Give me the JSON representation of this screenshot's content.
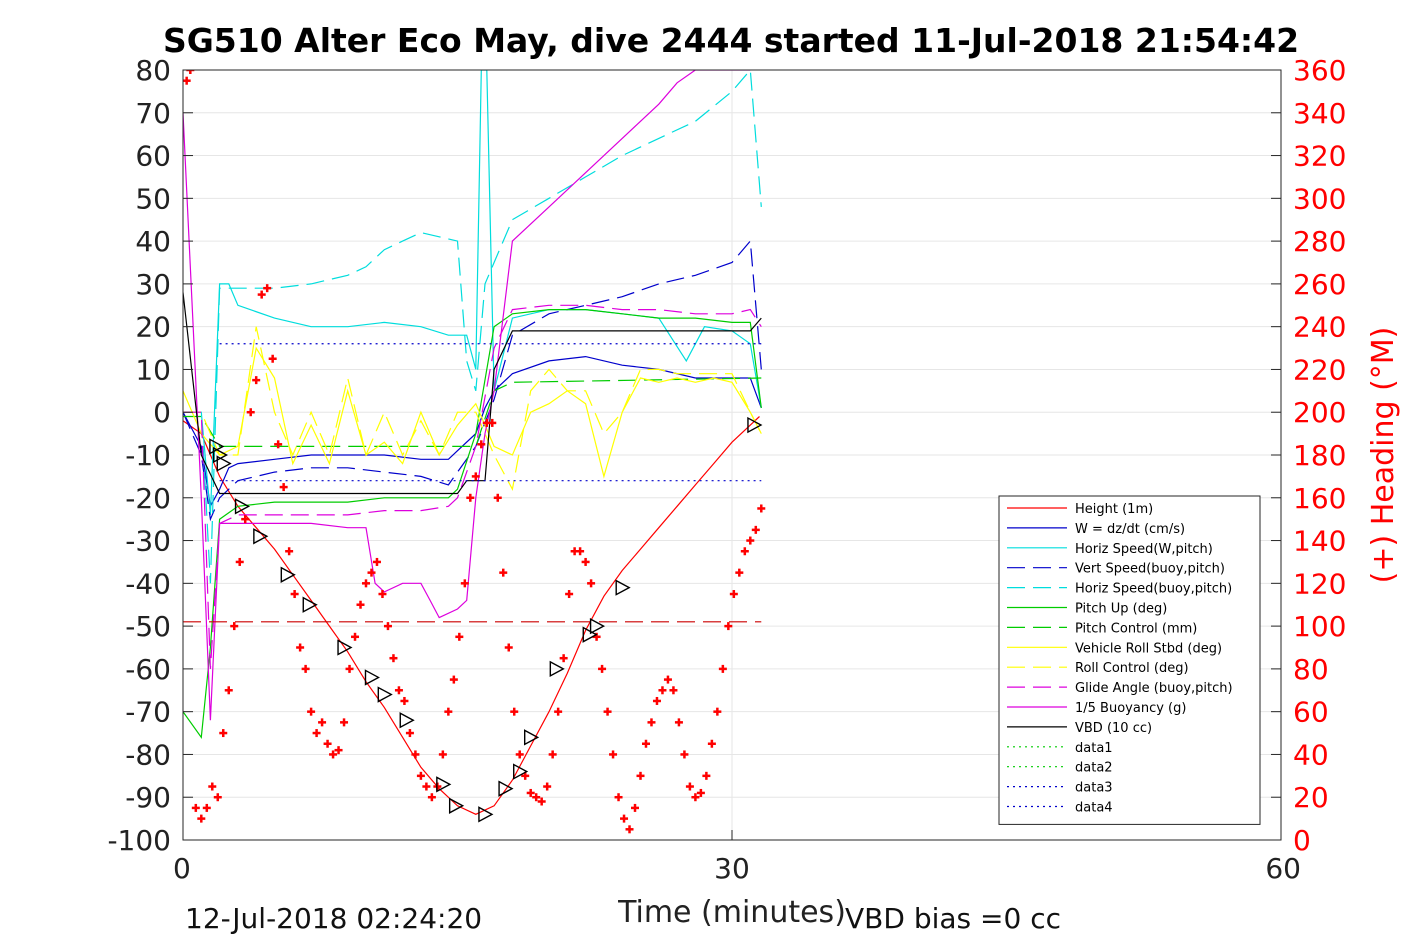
{
  "chart_data": {
    "type": "line",
    "title": "SG510 Alter Eco May, dive 2444 started 11-Jul-2018 21:54:42",
    "xlabel": "Time (minutes)",
    "ylabel": "",
    "y2label": "(+) Heading (°M)",
    "xlim": [
      0,
      60
    ],
    "ylim": [
      -100,
      80
    ],
    "y2lim": [
      0,
      360
    ],
    "x_ticks": [
      "0",
      "30",
      "60"
    ],
    "y_ticks": [
      "80",
      "70",
      "60",
      "50",
      "40",
      "30",
      "20",
      "10",
      "0",
      "-10",
      "-20",
      "-30",
      "-40",
      "-50",
      "-60",
      "-70",
      "-80",
      "-90",
      "-100"
    ],
    "y2_ticks": [
      "360",
      "340",
      "320",
      "300",
      "280",
      "260",
      "240",
      "220",
      "200",
      "180",
      "160",
      "140",
      "120",
      "100",
      "80",
      "60",
      "40",
      "20",
      "0"
    ],
    "grid": true,
    "legend_position": "lower-right",
    "footer_left": "12-Jul-2018 02:24:20",
    "footer_right": "VBD bias =0 cc",
    "series": [
      {
        "name": "Height (1m)",
        "color": "#ff0000",
        "style": "solid",
        "x": [
          0,
          1,
          2,
          3,
          4,
          5,
          6,
          7,
          8,
          9,
          10,
          11,
          12,
          13,
          14,
          15,
          16,
          17,
          18,
          19,
          20,
          21,
          22,
          23,
          24,
          25,
          26,
          27,
          28,
          29,
          30,
          31,
          31.5
        ],
        "y": [
          -2,
          -5,
          -15,
          -22,
          -27,
          -32,
          -38,
          -44,
          -50,
          -56,
          -63,
          -69,
          -76,
          -83,
          -88,
          -92,
          -94,
          -92,
          -86,
          -78,
          -70,
          -61,
          -51,
          -43,
          -37,
          -32,
          -27,
          -22,
          -17,
          -12,
          -7,
          -3,
          -1
        ]
      },
      {
        "name": "W = dz/dt (cm/s)",
        "color": "#0000cc",
        "style": "solid",
        "x": [
          0,
          1,
          1.5,
          2,
          2.5,
          3,
          5,
          7,
          9,
          11,
          13,
          14.5,
          15,
          16,
          16.5,
          17,
          18,
          20,
          22,
          24,
          26,
          28,
          30,
          31,
          31.6
        ],
        "y": [
          0,
          -8,
          -22,
          -18,
          -13,
          -12,
          -11,
          -10,
          -10,
          -10,
          -11,
          -11,
          -9,
          -5,
          1,
          5,
          9,
          12,
          13,
          11,
          10,
          8,
          8,
          8,
          1
        ]
      },
      {
        "name": "Horiz Speed(W,pitch)",
        "color": "#00dddd",
        "style": "solid",
        "x": [
          0,
          1,
          1.5,
          2,
          2.5,
          3,
          5,
          7,
          9,
          11,
          13,
          14.5,
          15.5,
          16,
          16.3,
          16.6,
          17,
          18,
          20,
          22,
          24,
          26,
          27.5,
          28.5,
          30,
          31,
          31.6
        ],
        "y": [
          0,
          0,
          -24,
          30,
          30,
          25,
          22,
          20,
          20,
          21,
          20,
          18,
          18,
          10,
          80,
          80,
          5,
          22,
          24,
          24,
          23,
          22,
          12,
          20,
          19,
          16,
          1
        ]
      },
      {
        "name": "Vert Speed(buoy,pitch)",
        "color": "#0000cc",
        "style": "dashed",
        "x": [
          0,
          1,
          1.5,
          2,
          3,
          5,
          7,
          9,
          11,
          13,
          14.5,
          15,
          16,
          17,
          18,
          20,
          22,
          24,
          26,
          28,
          30,
          31,
          31.6
        ],
        "y": [
          0,
          -10,
          -25,
          -20,
          -16,
          -14,
          -13,
          -13,
          -14,
          -15,
          -17,
          -14,
          -8,
          3,
          18,
          23,
          25,
          27,
          30,
          32,
          35,
          40,
          10
        ]
      },
      {
        "name": "Horiz Speed(buoy,pitch)",
        "color": "#00dddd",
        "style": "dashed",
        "x": [
          0,
          1,
          1.5,
          2,
          3,
          5,
          7,
          9,
          10,
          11,
          12,
          13,
          14,
          15,
          15.5,
          16,
          16.5,
          17,
          18,
          20,
          22,
          24,
          26,
          28,
          30,
          31,
          31.6
        ],
        "y": [
          0,
          0,
          -40,
          29,
          29,
          29,
          30,
          32,
          34,
          38,
          40,
          42,
          41,
          40,
          12,
          5,
          30,
          35,
          45,
          50,
          55,
          60,
          64,
          68,
          75,
          80,
          48
        ]
      },
      {
        "name": "Pitch Up (deg)",
        "color": "#00cc00",
        "style": "solid",
        "x": [
          0,
          1,
          1.5,
          2,
          3,
          5,
          7,
          9,
          11,
          13,
          14.5,
          15,
          16,
          17,
          18,
          20,
          22,
          24,
          26,
          28,
          30,
          31,
          31.6
        ],
        "y": [
          -70,
          -76,
          -55,
          -25,
          -22,
          -21,
          -21,
          -21,
          -20,
          -20,
          -20,
          -18,
          -5,
          20,
          23,
          24,
          24,
          23,
          22,
          22,
          21,
          21,
          1
        ]
      },
      {
        "name": "Pitch Control (mm)",
        "color": "#00cc00",
        "style": "dashed",
        "x": [
          0,
          1,
          2,
          3,
          15,
          16,
          17,
          18,
          31.6
        ],
        "y": [
          -1,
          -1,
          -8,
          -8,
          -8,
          -8,
          5,
          7,
          8
        ]
      },
      {
        "name": "Vehicle Roll Stbd (deg)",
        "color": "#ffff00",
        "style": "solid",
        "x": [
          0,
          1,
          2,
          3,
          4,
          5,
          6,
          7,
          8,
          9,
          10,
          11,
          12,
          13,
          14,
          15,
          16,
          17,
          18,
          19,
          20,
          21,
          22,
          23,
          24,
          25,
          26,
          27,
          28,
          29,
          30,
          31,
          31.6
        ],
        "y": [
          5,
          -5,
          -10,
          -8,
          15,
          8,
          -12,
          -3,
          -12,
          5,
          -10,
          -7,
          -12,
          0,
          -10,
          -3,
          2,
          -8,
          -10,
          0,
          2,
          5,
          2,
          -15,
          0,
          8,
          7,
          8,
          7,
          8,
          7,
          0,
          -5
        ]
      },
      {
        "name": "Roll Control (deg)",
        "color": "#ffff00",
        "style": "dashed",
        "x": [
          0,
          1,
          2,
          3,
          4,
          5,
          6,
          7,
          8,
          9,
          10,
          11,
          12,
          13,
          14,
          15,
          16,
          17,
          18,
          19,
          20,
          21,
          22,
          23,
          24,
          25,
          26,
          27,
          28,
          29,
          30,
          31,
          31.6
        ],
        "y": [
          0,
          0,
          -10,
          -10,
          20,
          0,
          -10,
          0,
          -10,
          8,
          -10,
          0,
          -10,
          -2,
          -10,
          0,
          0,
          -10,
          -18,
          5,
          10,
          5,
          5,
          -5,
          0,
          10,
          10,
          9,
          9,
          9,
          9,
          0,
          -5
        ]
      },
      {
        "name": "Glide Angle (buoy,pitch)",
        "color": "#dd00dd",
        "style": "dashed",
        "x": [
          0,
          1,
          1.5,
          2,
          3,
          5,
          7,
          9,
          11,
          13,
          14.5,
          15,
          16,
          17,
          18,
          20,
          22,
          24,
          26,
          28,
          30,
          31,
          31.6
        ],
        "y": [
          0,
          0,
          -60,
          -26,
          -24,
          -24,
          -24,
          -24,
          -23,
          -23,
          -22,
          -20,
          -8,
          15,
          24,
          25,
          25,
          24,
          24,
          23,
          23,
          24,
          20
        ]
      },
      {
        "name": "1/5 Buoyancy (g)",
        "color": "#dd00dd",
        "style": "solid",
        "x": [
          0,
          1,
          1.5,
          2,
          3,
          5,
          7,
          9,
          10,
          10.5,
          11,
          12,
          13,
          13.5,
          14,
          15,
          15.5,
          16,
          16.5,
          17,
          18,
          20,
          22,
          24,
          26,
          27,
          28,
          30,
          31
        ],
        "y": [
          70,
          -20,
          -72,
          -26,
          -26,
          -26,
          -26,
          -27,
          -27,
          -40,
          -42,
          -40,
          -40,
          -44,
          -48,
          -46,
          -44,
          -20,
          -5,
          5,
          40,
          48,
          56,
          64,
          72,
          77,
          80,
          80,
          80
        ]
      },
      {
        "name": "VBD (10 cc)",
        "color": "#000000",
        "style": "solid",
        "x": [
          0,
          1,
          2,
          3,
          15,
          15.5,
          16.5,
          17,
          18,
          20,
          31,
          31.6
        ],
        "y": [
          28,
          -10,
          -19,
          -19,
          -19,
          -16,
          -16,
          10,
          19,
          19,
          19,
          22
        ]
      },
      {
        "name": "data1",
        "color": "#00cc00",
        "style": "dotted",
        "x": [],
        "y": []
      },
      {
        "name": "data2",
        "color": "#00cc00",
        "style": "dotted",
        "x": [],
        "y": []
      },
      {
        "name": "data3",
        "color": "#0000cc",
        "style": "dotted",
        "x": [],
        "y": []
      },
      {
        "name": "data4",
        "color": "#0000cc",
        "style": "dotted",
        "x": [],
        "y": []
      }
    ],
    "reference_lines": [
      {
        "color": "#0000cc",
        "style": "dotted",
        "y": 16,
        "x": [
          2,
          31.6
        ]
      },
      {
        "color": "#0000cc",
        "style": "dotted",
        "y": -16,
        "x": [
          2,
          31.6
        ]
      },
      {
        "color": "#cc0000",
        "style": "dashed",
        "y": -49,
        "x": [
          0,
          31.6
        ]
      }
    ],
    "heading_points": {
      "color": "#ff0000",
      "marker": "+",
      "axis": "right",
      "x": [
        0.2,
        0.4,
        0.7,
        1.0,
        1.3,
        1.6,
        1.9,
        2.2,
        2.5,
        2.8,
        3.1,
        3.4,
        3.7,
        4.0,
        4.3,
        4.6,
        4.9,
        5.2,
        5.5,
        5.8,
        6.1,
        6.4,
        6.7,
        7.0,
        7.3,
        7.6,
        7.9,
        8.2,
        8.5,
        8.8,
        9.1,
        9.4,
        9.7,
        10.0,
        10.3,
        10.6,
        10.9,
        11.2,
        11.5,
        11.8,
        12.1,
        12.4,
        12.7,
        13.0,
        13.3,
        13.6,
        13.9,
        14.2,
        14.5,
        14.8,
        15.1,
        15.4,
        15.7,
        16.0,
        16.3,
        16.6,
        16.9,
        17.2,
        17.5,
        17.8,
        18.1,
        18.4,
        18.7,
        19.0,
        19.3,
        19.6,
        19.9,
        20.2,
        20.5,
        20.8,
        21.1,
        21.4,
        21.7,
        22.0,
        22.3,
        22.6,
        22.9,
        23.2,
        23.5,
        23.8,
        24.1,
        24.4,
        24.7,
        25.0,
        25.3,
        25.6,
        25.9,
        26.2,
        26.5,
        26.8,
        27.1,
        27.4,
        27.7,
        28.0,
        28.3,
        28.6,
        28.9,
        29.2,
        29.5,
        29.8,
        30.1,
        30.4,
        30.7,
        31.0,
        31.3,
        31.6
      ],
      "y": [
        355,
        360,
        15,
        10,
        15,
        25,
        20,
        50,
        70,
        100,
        130,
        150,
        200,
        215,
        255,
        258,
        225,
        185,
        165,
        135,
        115,
        90,
        80,
        60,
        50,
        55,
        45,
        40,
        42,
        55,
        80,
        95,
        110,
        120,
        125,
        130,
        115,
        100,
        85,
        70,
        65,
        50,
        40,
        30,
        25,
        20,
        25,
        40,
        60,
        75,
        95,
        120,
        160,
        170,
        185,
        195,
        195,
        160,
        125,
        90,
        60,
        40,
        30,
        22,
        20,
        18,
        25,
        40,
        60,
        85,
        115,
        135,
        135,
        130,
        120,
        95,
        80,
        60,
        40,
        20,
        10,
        5,
        15,
        30,
        45,
        55,
        65,
        70,
        75,
        70,
        55,
        40,
        25,
        20,
        22,
        30,
        45,
        60,
        80,
        100,
        115,
        125,
        135,
        140,
        145,
        155
      ]
    },
    "trajectory_markers": {
      "color": "#000000",
      "marker": "triangle",
      "x": [
        1.8,
        2.0,
        2.2,
        3.2,
        4.2,
        5.7,
        6.9,
        8.8,
        10.3,
        11.0,
        12.2,
        14.2,
        14.9,
        16.5,
        17.6,
        18.4,
        19.0,
        20.4,
        22.2,
        22.6,
        24.0,
        31.2
      ],
      "y": [
        -8,
        -10,
        -12,
        -22,
        -29,
        -38,
        -45,
        -55,
        -62,
        -66,
        -72,
        -87,
        -92,
        -94,
        -88,
        -84,
        -76,
        -60,
        -52,
        -50,
        -41,
        -3
      ]
    }
  }
}
